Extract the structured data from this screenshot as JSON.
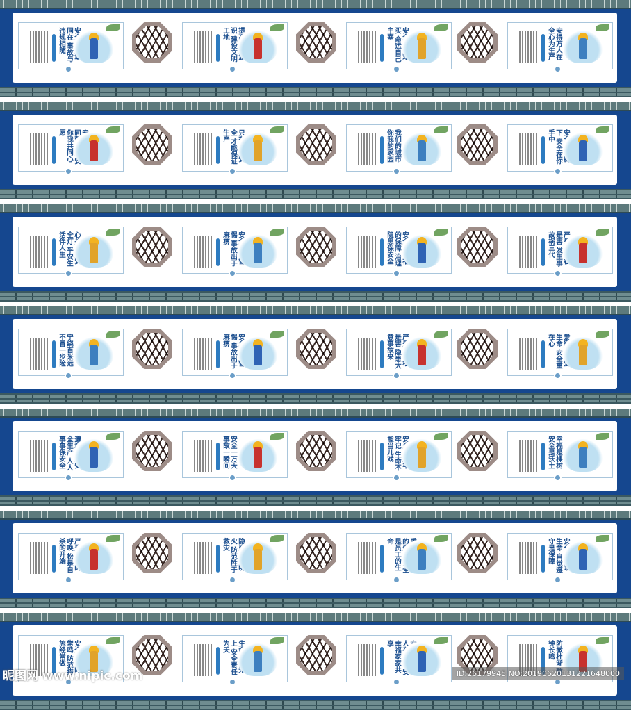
{
  "colors": {
    "wall_blue": "#15478f",
    "title_blue": "#1c4f8f",
    "roof": "#5d7a7c"
  },
  "rows": [
    {
      "posters": [
        "安全与遵章同在 事故与违规相随",
        "提高安全意识 建设文明工地",
        "安全千金难买 命运自己主宰",
        "安得万人在 全心为生产"
      ]
    },
    {
      "posters": [
        "安全你我共同营造 平安你我共同心愿",
        "只有抓好安全 才能保证生产",
        "我们的城市 你我的家园",
        "安全在你脚下 安全在你手中"
      ]
    },
    {
      "posters": [
        "心头常亮安全灯 平安生活伴人生",
        "安全来于警惕 事故出于麻痹",
        "安全是幸福的保障 治理隐患保安全",
        "严是爱，松是害 发生事故祸三代"
      ]
    },
    {
      "posters": [
        "宁绕百米远 不冒一步险",
        "安全来于警惕 事故出于麻痹",
        "严是爱，松是害 隐患大意事故来",
        "爱家就是爱生命 安全重在心"
      ]
    },
    {
      "posters": [
        "遵章守纪安全生产 人人事事保安全",
        "安全一万天 事故一瞬间",
        "安全生产牢牢记 生命不能当儿戏",
        "幸福是棵树 安全是沃土"
      ]
    },
    {
      "posters": [
        "严是生命的呼唤 松是自杀的开端",
        "隐患险于明火 防范胜于救灾",
        "质量是大厦的生命 安全是员工的生命",
        "安全规程系生命 自觉遵守是保障"
      ]
    },
    {
      "posters": [
        "安全警钟时常鸣 防范措施经常做",
        "生命至高无上 安全责任为天",
        "安全生产人人有责 平安幸福家家共享",
        "防微杜渐 警钟长鸣"
      ]
    }
  ],
  "watermark": {
    "site": "昵图网 www.nipic.com",
    "id": "ID:26179945 NO:20190620131221648000"
  }
}
